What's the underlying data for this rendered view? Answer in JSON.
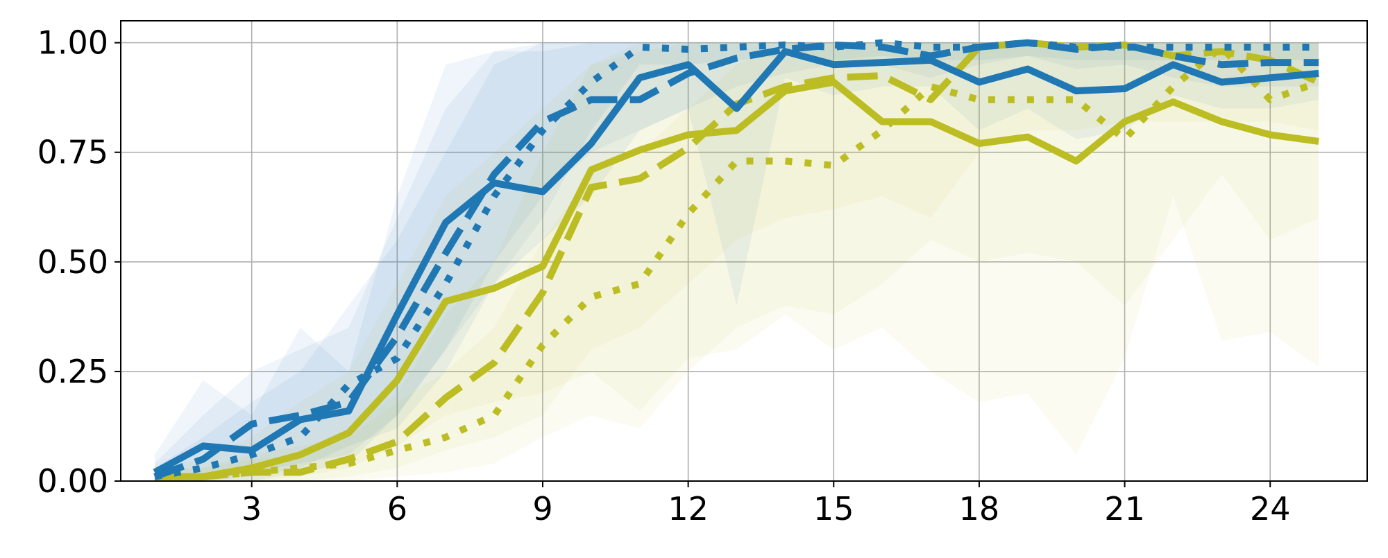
{
  "chart_data": {
    "type": "line",
    "title": "",
    "xlabel": "",
    "ylabel": "",
    "xlim": [
      0.3,
      26.0
    ],
    "ylim": [
      0.0,
      1.05
    ],
    "grid": true,
    "xticks": [
      3,
      6,
      9,
      12,
      15,
      18,
      21,
      24
    ],
    "xtick_labels": [
      "3",
      "6",
      "9",
      "12",
      "15",
      "18",
      "21",
      "24"
    ],
    "yticks": [
      0.0,
      0.25,
      0.5,
      0.75,
      1.0
    ],
    "ytick_labels": [
      "0.00",
      "0.25",
      "0.50",
      "0.75",
      "1.00"
    ],
    "x": [
      1,
      2,
      3,
      4,
      5,
      6,
      7,
      8,
      9,
      10,
      11,
      12,
      13,
      14,
      15,
      16,
      17,
      18,
      19,
      20,
      21,
      22,
      23,
      24,
      25
    ],
    "series": [
      {
        "color": "#1f77b4",
        "style": "solid",
        "values": [
          0.02,
          0.08,
          0.07,
          0.14,
          0.16,
          0.38,
          0.59,
          0.68,
          0.66,
          0.77,
          0.92,
          0.95,
          0.85,
          0.98,
          0.95,
          0.955,
          0.96,
          0.91,
          0.94,
          0.89,
          0.895,
          0.95,
          0.91,
          0.92,
          0.93
        ],
        "lower": [
          0.0,
          0.0,
          0.0,
          0.02,
          0.04,
          0.15,
          0.3,
          0.45,
          0.55,
          0.65,
          0.8,
          0.85,
          0.4,
          0.92,
          0.88,
          0.9,
          0.9,
          0.8,
          0.85,
          0.78,
          0.8,
          0.88,
          0.85,
          0.85,
          0.87
        ],
        "upper": [
          0.06,
          0.23,
          0.15,
          0.35,
          0.25,
          0.65,
          0.95,
          0.98,
          0.98,
          1.0,
          1.0,
          1.0,
          1.0,
          1.0,
          1.0,
          1.0,
          1.0,
          1.0,
          1.0,
          1.0,
          1.0,
          1.0,
          1.0,
          1.0,
          1.0
        ]
      },
      {
        "color": "#1f77b4",
        "style": "dashed",
        "values": [
          0.01,
          0.05,
          0.13,
          0.15,
          0.18,
          0.33,
          0.52,
          0.7,
          0.82,
          0.87,
          0.87,
          0.93,
          0.965,
          0.985,
          0.995,
          0.99,
          0.97,
          0.99,
          1.0,
          0.985,
          0.995,
          0.97,
          0.95,
          0.955,
          0.955
        ],
        "lower": [
          0.0,
          0.0,
          0.02,
          0.04,
          0.06,
          0.15,
          0.3,
          0.5,
          0.65,
          0.75,
          0.8,
          0.85,
          0.9,
          0.93,
          0.95,
          0.95,
          0.92,
          0.95,
          0.97,
          0.94,
          0.95,
          0.92,
          0.9,
          0.9,
          0.9
        ],
        "upper": [
          0.04,
          0.15,
          0.25,
          0.3,
          0.35,
          0.6,
          0.85,
          0.98,
          1.0,
          1.0,
          1.0,
          1.0,
          1.0,
          1.0,
          1.0,
          1.0,
          1.0,
          1.0,
          1.0,
          1.0,
          1.0,
          1.0,
          1.0,
          1.0,
          1.0
        ]
      },
      {
        "color": "#1f77b4",
        "style": "dotted",
        "values": [
          0.01,
          0.03,
          0.06,
          0.1,
          0.22,
          0.28,
          0.45,
          0.65,
          0.8,
          0.91,
          0.99,
          0.985,
          0.99,
          0.995,
          0.99,
          1.0,
          0.99,
          0.99,
          1.0,
          0.99,
          0.99,
          0.99,
          0.99,
          0.99,
          0.99
        ],
        "lower": [
          0.0,
          0.0,
          0.01,
          0.03,
          0.08,
          0.12,
          0.25,
          0.45,
          0.6,
          0.8,
          0.95,
          0.95,
          0.96,
          0.97,
          0.96,
          0.97,
          0.96,
          0.96,
          0.97,
          0.96,
          0.96,
          0.96,
          0.96,
          0.96,
          0.96
        ],
        "upper": [
          0.03,
          0.1,
          0.18,
          0.25,
          0.4,
          0.55,
          0.75,
          0.95,
          1.0,
          1.0,
          1.0,
          1.0,
          1.0,
          1.0,
          1.0,
          1.0,
          1.0,
          1.0,
          1.0,
          1.0,
          1.0,
          1.0,
          1.0,
          1.0,
          1.0
        ]
      },
      {
        "color": "#bcbd22",
        "style": "solid",
        "values": [
          0.01,
          0.01,
          0.03,
          0.06,
          0.11,
          0.23,
          0.41,
          0.44,
          0.49,
          0.71,
          0.755,
          0.79,
          0.8,
          0.89,
          0.91,
          0.82,
          0.82,
          0.77,
          0.785,
          0.73,
          0.82,
          0.865,
          0.82,
          0.79,
          0.775
        ],
        "lower": [
          0.0,
          0.0,
          0.0,
          0.01,
          0.03,
          0.08,
          0.15,
          0.18,
          0.2,
          0.25,
          0.16,
          0.28,
          0.3,
          0.38,
          0.3,
          0.35,
          0.25,
          0.18,
          0.2,
          0.06,
          0.28,
          0.65,
          0.32,
          0.34,
          0.26
        ],
        "upper": [
          0.03,
          0.05,
          0.1,
          0.18,
          0.25,
          0.45,
          0.65,
          0.75,
          0.85,
          0.95,
          1.0,
          1.0,
          1.0,
          1.0,
          1.0,
          1.0,
          1.0,
          1.0,
          1.0,
          1.0,
          1.0,
          1.0,
          1.0,
          1.0,
          1.0
        ]
      },
      {
        "color": "#bcbd22",
        "style": "dashed",
        "values": [
          0.01,
          0.01,
          0.02,
          0.02,
          0.05,
          0.09,
          0.19,
          0.27,
          0.43,
          0.67,
          0.69,
          0.76,
          0.86,
          0.9,
          0.92,
          0.925,
          0.87,
          0.99,
          1.0,
          0.99,
          0.995,
          0.97,
          0.98,
          0.96,
          0.91
        ],
        "lower": [
          0.0,
          0.0,
          0.0,
          0.0,
          0.01,
          0.03,
          0.07,
          0.1,
          0.15,
          0.3,
          0.35,
          0.45,
          0.55,
          0.6,
          0.62,
          0.65,
          0.6,
          0.75,
          0.8,
          0.8,
          0.82,
          0.82,
          0.82,
          0.82,
          0.8
        ],
        "upper": [
          0.03,
          0.03,
          0.05,
          0.06,
          0.12,
          0.2,
          0.38,
          0.5,
          0.75,
          0.95,
          0.98,
          1.0,
          1.0,
          1.0,
          1.0,
          1.0,
          1.0,
          1.0,
          1.0,
          1.0,
          1.0,
          1.0,
          1.0,
          1.0,
          1.0
        ]
      },
      {
        "color": "#bcbd22",
        "style": "dotted",
        "values": [
          0.01,
          0.01,
          0.02,
          0.03,
          0.04,
          0.07,
          0.1,
          0.15,
          0.31,
          0.42,
          0.45,
          0.61,
          0.73,
          0.73,
          0.72,
          0.8,
          0.9,
          0.87,
          0.87,
          0.87,
          0.78,
          0.9,
          0.99,
          0.87,
          0.91
        ],
        "lower": [
          0.0,
          0.0,
          0.0,
          0.0,
          0.0,
          0.01,
          0.02,
          0.04,
          0.1,
          0.15,
          0.12,
          0.25,
          0.35,
          0.4,
          0.38,
          0.45,
          0.55,
          0.5,
          0.52,
          0.5,
          0.4,
          0.55,
          0.7,
          0.55,
          0.6
        ],
        "upper": [
          0.02,
          0.03,
          0.06,
          0.08,
          0.1,
          0.18,
          0.25,
          0.35,
          0.55,
          0.7,
          0.75,
          0.85,
          0.95,
          1.0,
          1.0,
          1.0,
          1.0,
          1.0,
          1.0,
          1.0,
          1.0,
          1.0,
          1.0,
          1.0,
          1.0
        ]
      }
    ]
  }
}
